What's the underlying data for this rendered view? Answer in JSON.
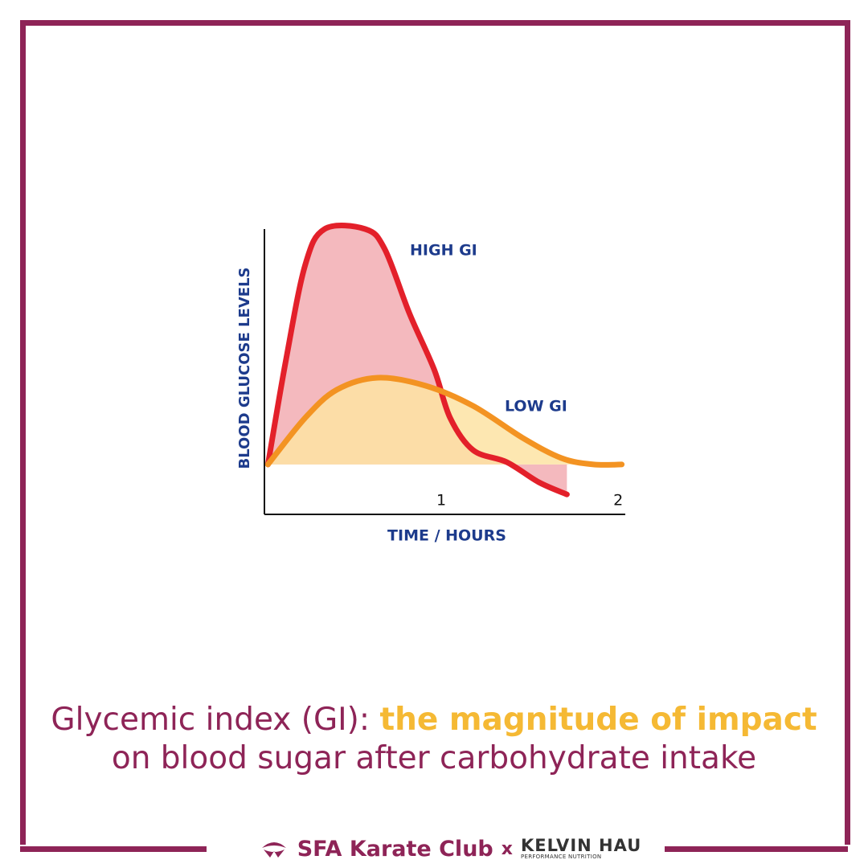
{
  "chart_data": {
    "type": "area",
    "xlabel": "TIME / HOURS",
    "ylabel": "BLOOD GLUCOSE LEVELS",
    "xlim": [
      0,
      2.04
    ],
    "xticks": [
      1,
      2
    ],
    "ylim": [
      0,
      100
    ],
    "series": [
      {
        "name": "HIGH GI",
        "color": "#e3202a",
        "fill": "#f4b9be",
        "x": [
          0.02,
          0.12,
          0.23,
          0.34,
          0.57,
          0.68,
          0.82,
          0.96,
          1.05,
          1.18,
          1.37,
          1.55,
          1.71
        ],
        "values": [
          17.5,
          53.5,
          87.3,
          100,
          100,
          93,
          70.4,
          50.7,
          33.8,
          22.5,
          18.3,
          11.3,
          7
        ]
      },
      {
        "name": "LOW GI",
        "color": "#f39322",
        "fill": "#fde3a3",
        "x": [
          0.02,
          0.23,
          0.41,
          0.64,
          0.91,
          1.18,
          1.46,
          1.68,
          1.86,
          2.02
        ],
        "values": [
          17.5,
          33.8,
          43.7,
          47.9,
          45.1,
          38,
          26.8,
          19.7,
          17.5,
          17.5
        ]
      }
    ]
  },
  "caption": {
    "lead": "Glycemic index (GI):",
    "highlight": "the magnitude of impact",
    "rest": "on blood sugar after carbohydrate intake"
  },
  "footer": {
    "club": "SFA Karate Club",
    "separator": "x",
    "partner": "KELVIN HAU",
    "partner_sub": "PERFORMANCE NUTRITION"
  }
}
